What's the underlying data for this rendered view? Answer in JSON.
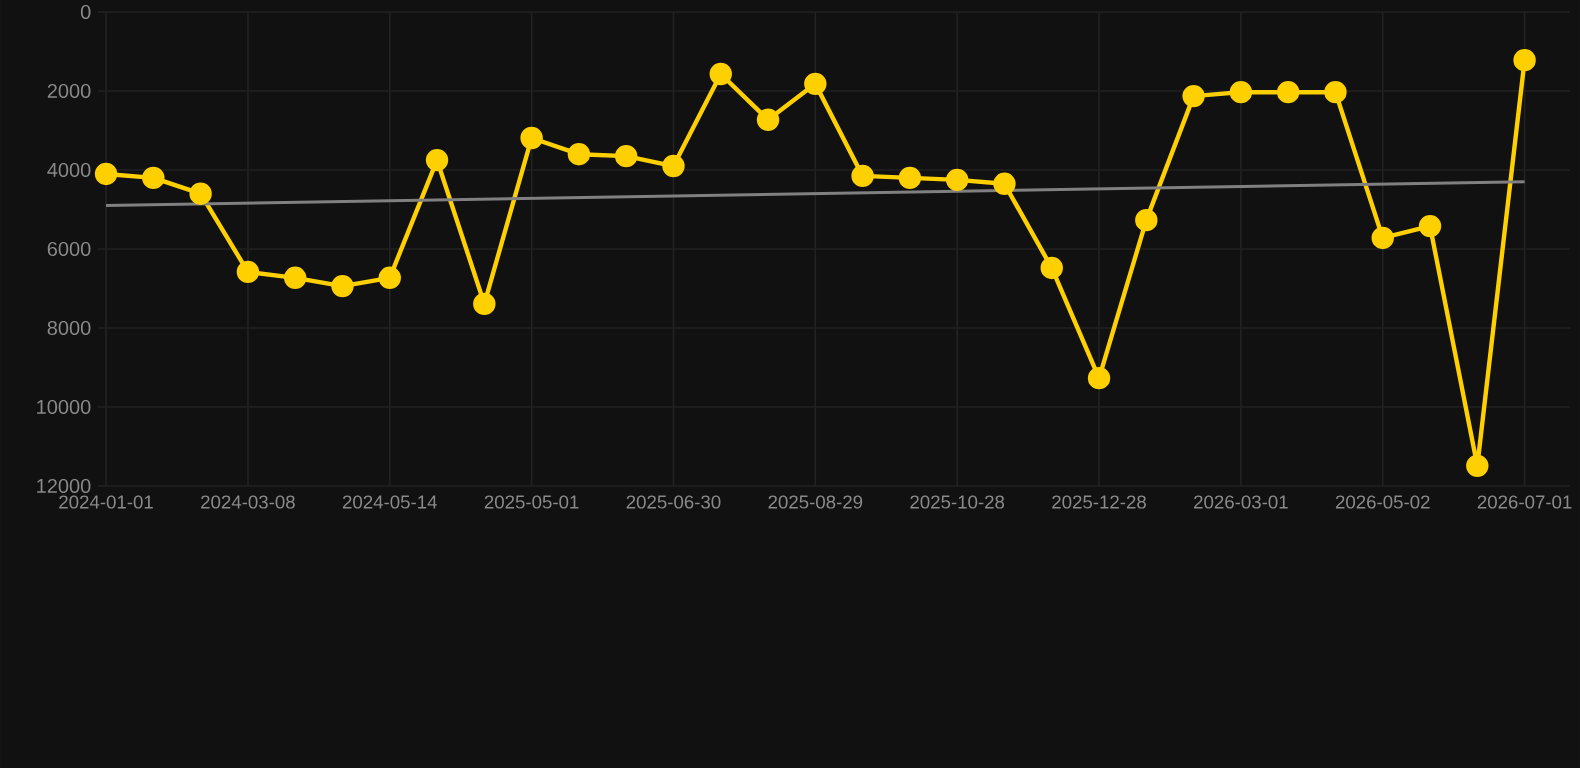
{
  "chart_data": {
    "type": "line",
    "categories": [
      "2024-01-01",
      null,
      null,
      "2024-03-08",
      null,
      null,
      "2024-05-14",
      null,
      null,
      "2025-05-01",
      null,
      null,
      "2025-06-30",
      null,
      null,
      "2025-08-29",
      null,
      null,
      "2025-10-28",
      null,
      null,
      "2025-12-28",
      null,
      null,
      "2026-03-01",
      null,
      null,
      "2026-05-02",
      null,
      null,
      "2026-07-01"
    ],
    "series": [
      {
        "color": "#ffd000",
        "marker": "circle",
        "values": [
          4100,
          4200,
          4600,
          6580,
          6730,
          6940,
          6730,
          3750,
          7390,
          3190,
          3600,
          3650,
          3900,
          1570,
          2730,
          1820,
          4150,
          4200,
          4250,
          4350,
          6480,
          9270,
          5270,
          2130,
          2030,
          2030,
          2030,
          5720,
          5420,
          11490,
          1220
        ]
      },
      {
        "color": "#808080",
        "marker": "none",
        "values": [
          4900,
          null,
          null,
          null,
          null,
          null,
          null,
          null,
          null,
          null,
          null,
          null,
          null,
          null,
          null,
          null,
          null,
          null,
          null,
          null,
          null,
          null,
          null,
          null,
          null,
          null,
          null,
          null,
          null,
          null,
          4300
        ]
      }
    ],
    "ylim": [
      12000,
      0
    ],
    "yticks": [
      0,
      2000,
      4000,
      6000,
      8000,
      10000,
      12000
    ],
    "grid": true,
    "line_style": "solid"
  }
}
